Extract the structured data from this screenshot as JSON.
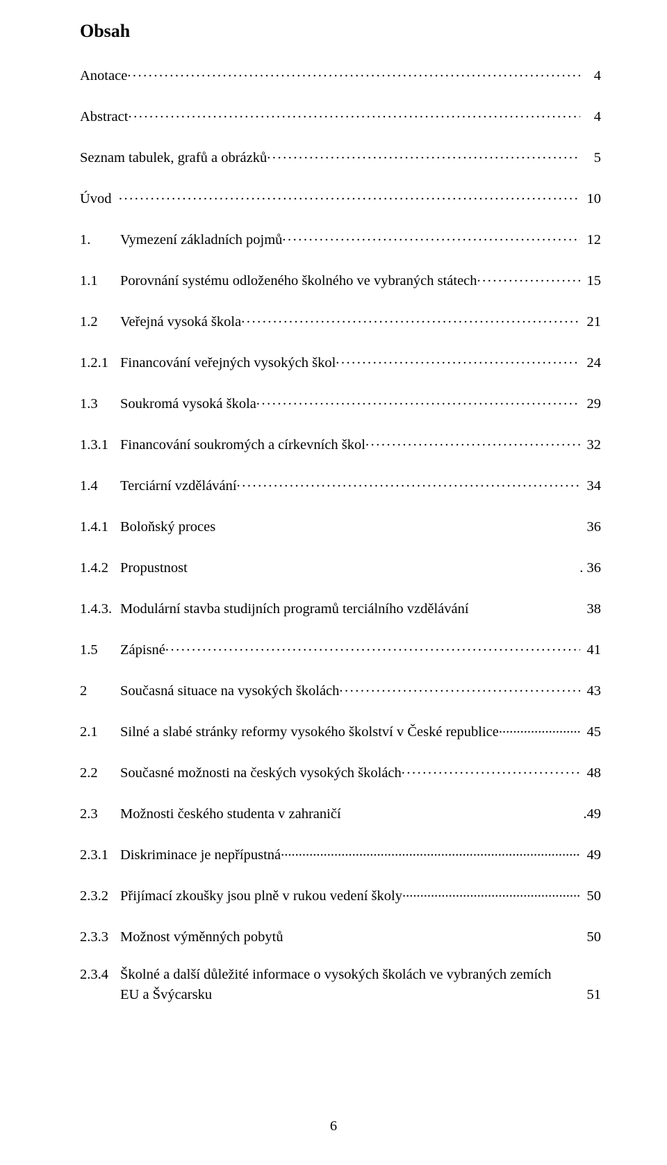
{
  "title": "Obsah",
  "page_number": "6",
  "font_family": "Times New Roman",
  "title_fontsize_pt": 20,
  "body_fontsize_pt": 15,
  "text_color": "#000000",
  "background_color": "#ffffff",
  "entries": [
    {
      "num": "",
      "num_class": "w0",
      "label": "Anotace",
      "leader": "dots",
      "page": "4"
    },
    {
      "num": "",
      "num_class": "w0",
      "label": "Abstract",
      "leader": "dots",
      "page": "4"
    },
    {
      "num": "",
      "num_class": "w0",
      "label": "Seznam tabulek, grafů a obrázků",
      "leader": "dots",
      "page": "5"
    },
    {
      "num": "",
      "num_class": "w0",
      "label": "Úvod  ",
      "leader": "dots",
      "page": "10"
    },
    {
      "num": "1.",
      "num_class": "w1",
      "label": "Vymezení základních pojmů",
      "leader": "dots",
      "page": "12"
    },
    {
      "num": "1.1",
      "num_class": "w2",
      "label": "Porovnání systému odloženého školného ve vybraných státech",
      "leader": "dots",
      "page": "15"
    },
    {
      "num": "1.2",
      "num_class": "w2",
      "label": "Veřejná vysoká škola",
      "leader": "dots",
      "page": "21"
    },
    {
      "num": "1.2.1",
      "num_class": "w3",
      "label": "Financování veřejných vysokých škol",
      "leader": "dots",
      "page": "24"
    },
    {
      "num": "1.3",
      "num_class": "w2",
      "label": "Soukromá vysoká škola",
      "leader": "dots",
      "page": "29"
    },
    {
      "num": "1.3.1",
      "num_class": "w3",
      "label": "Financování soukromých a církevních škol",
      "leader": "dots",
      "page": "32"
    },
    {
      "num": "1.4",
      "num_class": "w2",
      "label": "Terciární vzdělávání",
      "leader": "dots",
      "page": "34"
    },
    {
      "num": "1.4.1",
      "num_class": "w3",
      "label": "Boloňský proces",
      "leader": "blank",
      "page": " 36"
    },
    {
      "num": "1.4.2",
      "num_class": "w3",
      "label": "Propustnost",
      "leader": "blank",
      "page": ". 36"
    },
    {
      "num": "1.4.3.",
      "num_class": "w3",
      "label": "Modulární stavba studijních programů terciálního vzdělávání",
      "leader": "blank",
      "page": " 38"
    },
    {
      "num": "1.5",
      "num_class": "w2",
      "label": "Zápisné",
      "leader": "dots",
      "page": "41"
    },
    {
      "num": "2",
      "num_class": "w1",
      "label": "Současná situace na vysokých školách",
      "leader": "dots",
      "page": "43"
    },
    {
      "num": "2.1",
      "num_class": "w2",
      "label": "Silné a slabé stránky reformy vysokého školství v České republice",
      "leader": "tight-dots",
      "page": "45"
    },
    {
      "num": "2.2",
      "num_class": "w2",
      "label": "Současné možnosti na českých vysokých školách",
      "leader": "dots",
      "page": "48"
    },
    {
      "num": "2.3",
      "num_class": "w2",
      "label": "Možnosti českého studenta v zahraničí",
      "leader": "blank",
      "page": ".49"
    },
    {
      "num": "2.3.1",
      "num_class": "w3",
      "label": "Diskriminace je nepřípustná",
      "leader": "tight-dots",
      "page": "49"
    },
    {
      "num": "2.3.2",
      "num_class": "w3",
      "label": "Přijímací zkoušky jsou plně v rukou vedení školy",
      "leader": "tight-dots",
      "page": "50"
    },
    {
      "num": "2.3.3",
      "num_class": "w3",
      "label": "Možnost výměnných pobytů",
      "leader": "blank",
      "page": " 50"
    },
    {
      "num": "2.3.4",
      "num_class": "w3",
      "label": "Školné a další důležité informace o vysokých školách ve vybraných zemích",
      "leader": "none",
      "page": "",
      "wrap": true
    },
    {
      "num": "",
      "num_class": "w1",
      "label": "EU a Švýcarsku",
      "leader": "blank",
      "page": " 51",
      "continuation": true
    }
  ]
}
